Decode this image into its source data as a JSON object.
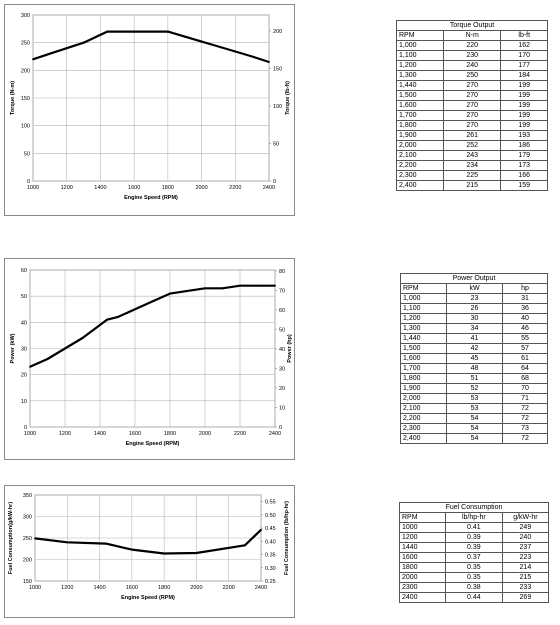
{
  "chart_data": [
    {
      "type": "line",
      "title": "",
      "xlabel": "Engine Speed (RPM)",
      "ylabel": "Torque (N-m)",
      "y2label": "Torque (lb-ft)",
      "xlim": [
        1000,
        2400
      ],
      "ylim": [
        0,
        300
      ],
      "y2lim": [
        0,
        221.27
      ],
      "x_ticks": [
        "1000",
        "1200",
        "1400",
        "1600",
        "1800",
        "2000",
        "2200",
        "2400"
      ],
      "y_ticks": [
        "0",
        "50",
        "100",
        "150",
        "200",
        "250",
        "300"
      ],
      "y2_ticks": [
        "0",
        "50",
        "100",
        "150",
        "200"
      ],
      "grid": true,
      "series": [
        {
          "x": [
            1000,
            1100,
            1200,
            1300,
            1440,
            1500,
            1600,
            1700,
            1800,
            1900,
            2000,
            2100,
            2200,
            2300,
            2400
          ],
          "values": [
            220,
            230,
            240,
            250,
            270,
            270,
            270,
            270,
            270,
            261,
            252,
            243,
            234,
            225,
            215
          ]
        }
      ]
    },
    {
      "type": "line",
      "title": "",
      "xlabel": "Engine Speed (RPM)",
      "ylabel": "Power (kW)",
      "y2label": "Power (hp)",
      "xlim": [
        1000,
        2400
      ],
      "ylim": [
        0,
        60
      ],
      "y2lim": [
        0,
        80.46
      ],
      "x_ticks": [
        "1000",
        "1200",
        "1400",
        "1600",
        "1800",
        "2000",
        "2200",
        "2400"
      ],
      "y_ticks": [
        "0",
        "10",
        "20",
        "30",
        "40",
        "50",
        "60"
      ],
      "y2_ticks": [
        "0",
        "10",
        "20",
        "30",
        "40",
        "50",
        "60",
        "70",
        "80"
      ],
      "grid": true,
      "series": [
        {
          "x": [
            1000,
            1100,
            1200,
            1300,
            1440,
            1500,
            1600,
            1700,
            1800,
            1900,
            2000,
            2100,
            2200,
            2300,
            2400
          ],
          "values": [
            23,
            26,
            30,
            34,
            41,
            42,
            45,
            48,
            51,
            52,
            53,
            53,
            54,
            54,
            54
          ]
        }
      ]
    },
    {
      "type": "line",
      "title": "",
      "xlabel": "Engine Speed (RPM)",
      "ylabel": "Fuel Consumption(g/kW-hr)",
      "y2label": "Fuel Consumption (lb/hp-hr)",
      "xlim": [
        1000,
        2400
      ],
      "ylim": [
        150,
        350
      ],
      "y2lim": [
        0.25,
        0.575
      ],
      "x_ticks": [
        "1000",
        "1200",
        "1400",
        "1600",
        "1800",
        "2000",
        "2200",
        "2400"
      ],
      "y_ticks": [
        "150",
        "200",
        "250",
        "300",
        "350"
      ],
      "y2_ticks": [
        "0.25",
        "0.30",
        "0.35",
        "0.40",
        "0.45",
        "0.50",
        "0.55"
      ],
      "grid": true,
      "series": [
        {
          "x": [
            1000,
            1200,
            1440,
            1600,
            1800,
            2000,
            2300,
            2400
          ],
          "values": [
            249,
            240,
            237,
            223,
            214,
            215,
            233,
            269
          ]
        }
      ]
    }
  ],
  "tables": {
    "torque": {
      "title": "Torque Output",
      "headers": [
        "RPM",
        "N-m",
        "lb-ft"
      ],
      "rows": [
        [
          "1,000",
          "220",
          "162"
        ],
        [
          "1,100",
          "230",
          "170"
        ],
        [
          "1,200",
          "240",
          "177"
        ],
        [
          "1,300",
          "250",
          "184"
        ],
        [
          "1,440",
          "270",
          "199"
        ],
        [
          "1,500",
          "270",
          "199"
        ],
        [
          "1,600",
          "270",
          "199"
        ],
        [
          "1,700",
          "270",
          "199"
        ],
        [
          "1,800",
          "270",
          "199"
        ],
        [
          "1,900",
          "261",
          "193"
        ],
        [
          "2,000",
          "252",
          "186"
        ],
        [
          "2,100",
          "243",
          "179"
        ],
        [
          "2,200",
          "234",
          "173"
        ],
        [
          "2,300",
          "225",
          "166"
        ],
        [
          "2,400",
          "215",
          "159"
        ]
      ]
    },
    "power": {
      "title": "Power Output",
      "headers": [
        "RPM",
        "kW",
        "hp"
      ],
      "rows": [
        [
          "1,000",
          "23",
          "31"
        ],
        [
          "1,100",
          "26",
          "36"
        ],
        [
          "1,200",
          "30",
          "40"
        ],
        [
          "1,300",
          "34",
          "46"
        ],
        [
          "1,440",
          "41",
          "55"
        ],
        [
          "1,500",
          "42",
          "57"
        ],
        [
          "1,600",
          "45",
          "61"
        ],
        [
          "1,700",
          "48",
          "64"
        ],
        [
          "1,800",
          "51",
          "68"
        ],
        [
          "1,900",
          "52",
          "70"
        ],
        [
          "2,000",
          "53",
          "71"
        ],
        [
          "2,100",
          "53",
          "72"
        ],
        [
          "2,200",
          "54",
          "72"
        ],
        [
          "2,300",
          "54",
          "73"
        ],
        [
          "2,400",
          "54",
          "72"
        ]
      ]
    },
    "fuel": {
      "title": "Fuel Consumption",
      "headers": [
        "RPM",
        "lb/hp-hr",
        "g/kW-hr"
      ],
      "rows": [
        [
          "1000",
          "0.41",
          "249"
        ],
        [
          "1200",
          "0.39",
          "240"
        ],
        [
          "1440",
          "0.39",
          "237"
        ],
        [
          "1600",
          "0.37",
          "223"
        ],
        [
          "1800",
          "0.35",
          "214"
        ],
        [
          "2000",
          "0.35",
          "215"
        ],
        [
          "2300",
          "0.38",
          "233"
        ],
        [
          "2400",
          "0.44",
          "269"
        ]
      ]
    }
  }
}
